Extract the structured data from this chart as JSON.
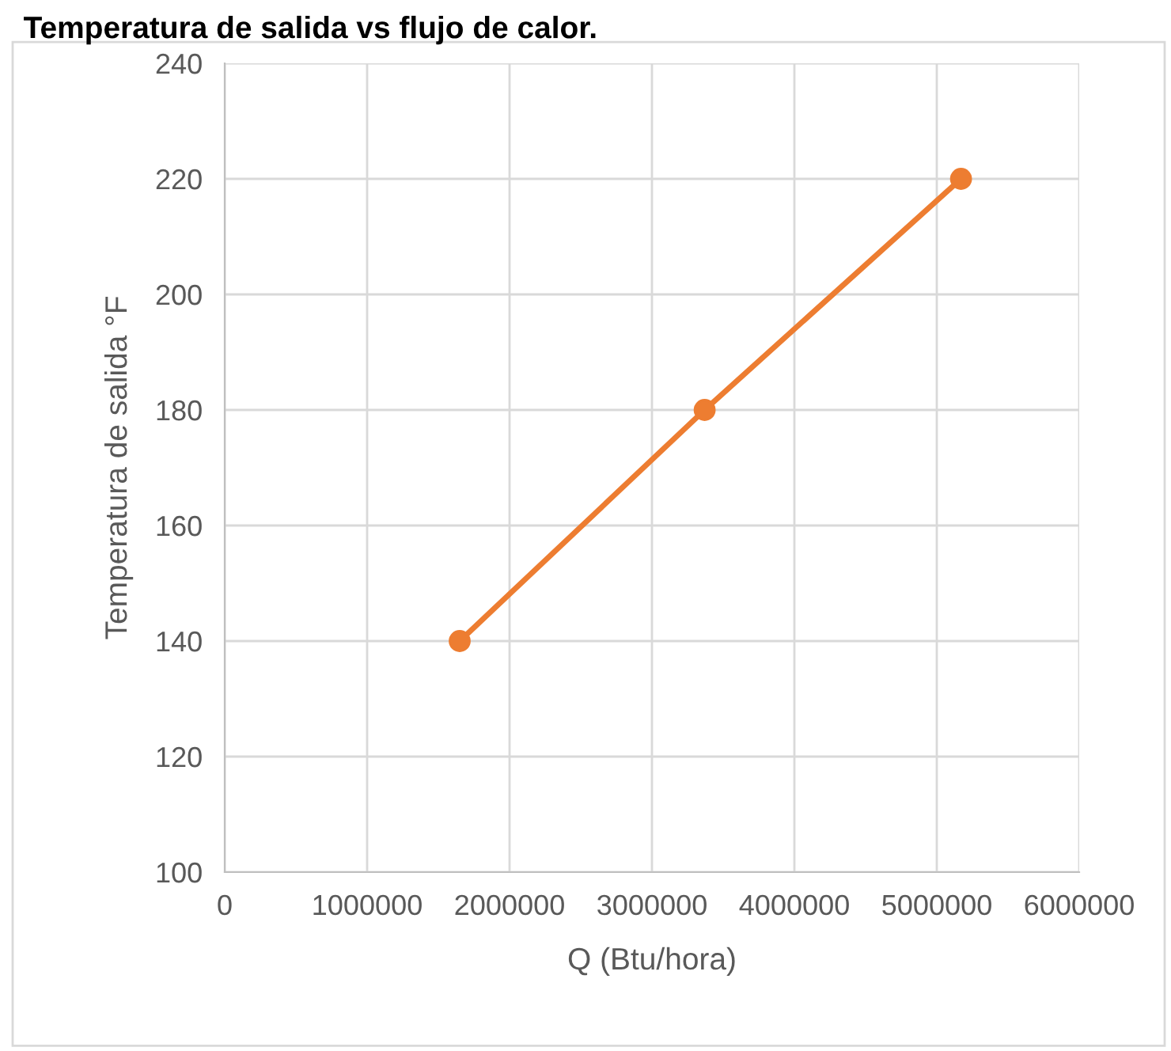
{
  "chart_data": {
    "type": "line",
    "title": "Temperatura de salida vs flujo de calor.",
    "xlabel": "Q (Btu/hora)",
    "ylabel": "Temperatura de salida °F",
    "series": [
      {
        "color": "#ed7d31",
        "x": [
          1650000,
          3370000,
          5170000
        ],
        "values": [
          140,
          180,
          220
        ]
      }
    ],
    "xlim": [
      0,
      6000000
    ],
    "xticks": [
      0,
      1000000,
      2000000,
      3000000,
      4000000,
      5000000,
      6000000
    ],
    "ylim": [
      100,
      240
    ],
    "yticks": [
      100,
      120,
      140,
      160,
      180,
      200,
      220,
      240
    ],
    "grid": true,
    "marker": "circle",
    "line_style": "solid",
    "legend": false
  }
}
